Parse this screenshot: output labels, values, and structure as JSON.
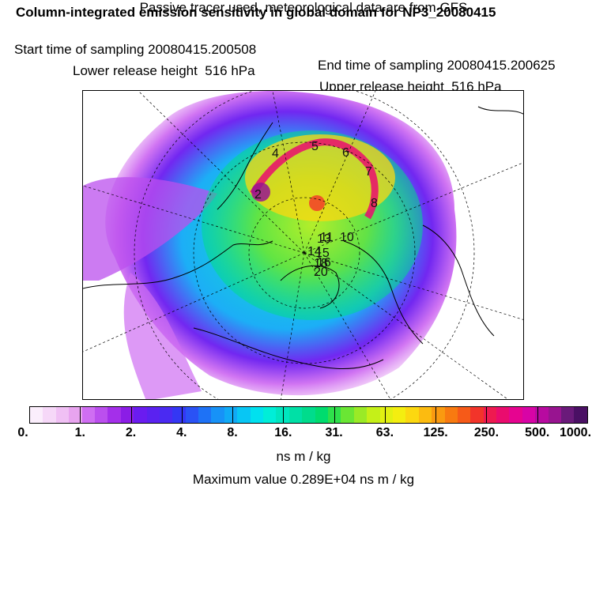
{
  "header": {
    "title": "Column-integrated emission sensitivity in global domain for NP3_20080415",
    "start_time": "Start time of sampling 20080415.200508",
    "end_time": "End time of sampling 20080415.200625",
    "lower_height": "Lower release height  516 hPa",
    "upper_height": "Upper release height  516 hPa",
    "info": "Passive tracer used, meteorological data are from GFS"
  },
  "map": {
    "projection": "polar stereographic",
    "track_labels": [
      "2",
      "4",
      "5",
      "6",
      "7",
      "8",
      "10",
      "11",
      "13",
      "14",
      "15",
      "16",
      "18",
      "20"
    ]
  },
  "colorbar": {
    "labels": [
      "0.",
      "1.",
      "2.",
      "4.",
      "8.",
      "16.",
      "31.",
      "63.",
      "125.",
      "250.",
      "500.",
      "1000."
    ],
    "colors": [
      "#fbeefc",
      "#f6d8f8",
      "#f0c0f4",
      "#e8a4ef",
      "#cf6ef2",
      "#bb4fee",
      "#a42fea",
      "#8b1de6",
      "#6a1cf0",
      "#5a22f0",
      "#4a2af2",
      "#3437f4",
      "#2a52f5",
      "#1e72f6",
      "#1792f7",
      "#10aaf6",
      "#08c6f4",
      "#00e1ef",
      "#00eed8",
      "#00e6bf",
      "#00e0a6",
      "#00dc8c",
      "#00dc6e",
      "#2ee04b",
      "#6ae634",
      "#9aea26",
      "#c5f018",
      "#e2f112",
      "#f4ee10",
      "#fcd810",
      "#fcbb10",
      "#fa9a10",
      "#f87a10",
      "#f65a18",
      "#f2342a",
      "#ee1a50",
      "#ea0c6e",
      "#e60490",
      "#d804a6",
      "#b80aa0",
      "#981490",
      "#6a1a7a",
      "#4a1064"
    ],
    "unit": "ns m / kg"
  },
  "max_value_text": "Maximum value  0.289E+04 ns m / kg"
}
